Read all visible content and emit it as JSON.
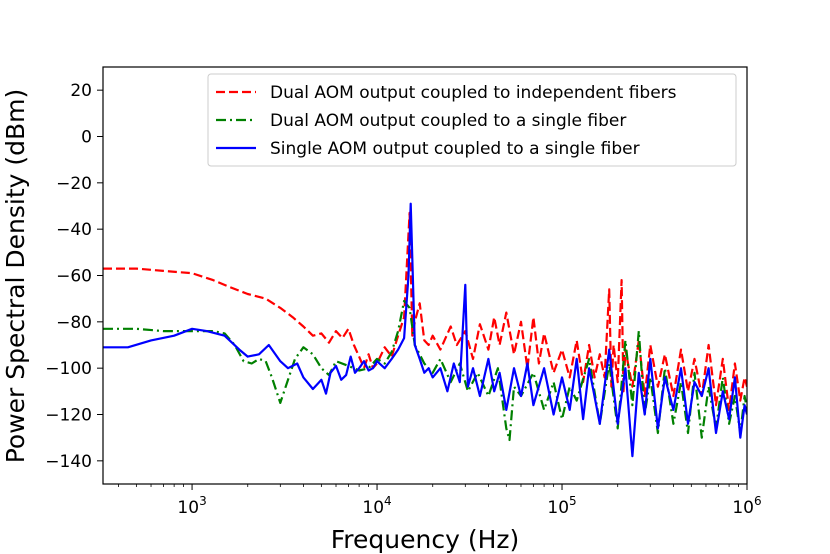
{
  "chart_data": {
    "type": "line",
    "title": "",
    "xlabel": "Frequency (Hz)",
    "ylabel": "Power Spectral Density (dBm)",
    "xscale": "log",
    "xlim": [
      330,
      1000000
    ],
    "ylim": [
      -150,
      30
    ],
    "x_ticks": [
      {
        "value": 1000,
        "base": "10",
        "exp": "3"
      },
      {
        "value": 10000,
        "base": "10",
        "exp": "4"
      },
      {
        "value": 100000,
        "base": "10",
        "exp": "5"
      },
      {
        "value": 1000000,
        "base": "10",
        "exp": "6"
      }
    ],
    "y_ticks": [
      {
        "value": 20,
        "label": "20"
      },
      {
        "value": 0,
        "label": "0"
      },
      {
        "value": -20,
        "label": "−20"
      },
      {
        "value": -40,
        "label": "−40"
      },
      {
        "value": -60,
        "label": "−60"
      },
      {
        "value": -80,
        "label": "−80"
      },
      {
        "value": -100,
        "label": "−100"
      },
      {
        "value": -120,
        "label": "−120"
      },
      {
        "value": -140,
        "label": "−140"
      }
    ],
    "grid": false,
    "legend_position": "top-right",
    "series": [
      {
        "name": "Dual AOM output coupled to independent fibers",
        "color": "#ff0000",
        "style": "dashed",
        "points": [
          [
            330,
            -57
          ],
          [
            500,
            -57
          ],
          [
            700,
            -58
          ],
          [
            1000,
            -59
          ],
          [
            1300,
            -62
          ],
          [
            1600,
            -65
          ],
          [
            2000,
            -68
          ],
          [
            2500,
            -70
          ],
          [
            3000,
            -74
          ],
          [
            3500,
            -78
          ],
          [
            4000,
            -82
          ],
          [
            4500,
            -86
          ],
          [
            5000,
            -85
          ],
          [
            5500,
            -89
          ],
          [
            6000,
            -84
          ],
          [
            6500,
            -87
          ],
          [
            7000,
            -83
          ],
          [
            7500,
            -90
          ],
          [
            8000,
            -95
          ],
          [
            8500,
            -100
          ],
          [
            9000,
            -94
          ],
          [
            9500,
            -100
          ],
          [
            10000,
            -98
          ],
          [
            11000,
            -91
          ],
          [
            12000,
            -95
          ],
          [
            13000,
            -86
          ],
          [
            14000,
            -78
          ],
          [
            15000,
            -33
          ],
          [
            15500,
            -86
          ],
          [
            16000,
            -80
          ],
          [
            17000,
            -72
          ],
          [
            18000,
            -88
          ],
          [
            19000,
            -90
          ],
          [
            20000,
            -86
          ],
          [
            22000,
            -92
          ],
          [
            25000,
            -82
          ],
          [
            27000,
            -90
          ],
          [
            30000,
            -84
          ],
          [
            33000,
            -96
          ],
          [
            36000,
            -81
          ],
          [
            40000,
            -92
          ],
          [
            43000,
            -78
          ],
          [
            46000,
            -90
          ],
          [
            50000,
            -76
          ],
          [
            55000,
            -94
          ],
          [
            60000,
            -80
          ],
          [
            65000,
            -100
          ],
          [
            70000,
            -78
          ],
          [
            75000,
            -98
          ],
          [
            80000,
            -85
          ],
          [
            90000,
            -102
          ],
          [
            100000,
            -92
          ],
          [
            110000,
            -104
          ],
          [
            120000,
            -88
          ],
          [
            130000,
            -106
          ],
          [
            140000,
            -90
          ],
          [
            150000,
            -104
          ],
          [
            160000,
            -94
          ],
          [
            170000,
            -104
          ],
          [
            180000,
            -66
          ],
          [
            185000,
            -108
          ],
          [
            190000,
            -90
          ],
          [
            200000,
            -106
          ],
          [
            210000,
            -62
          ],
          [
            215000,
            -110
          ],
          [
            220000,
            -92
          ],
          [
            240000,
            -108
          ],
          [
            260000,
            -88
          ],
          [
            280000,
            -112
          ],
          [
            300000,
            -90
          ],
          [
            330000,
            -108
          ],
          [
            360000,
            -94
          ],
          [
            400000,
            -112
          ],
          [
            440000,
            -92
          ],
          [
            480000,
            -110
          ],
          [
            520000,
            -96
          ],
          [
            570000,
            -112
          ],
          [
            620000,
            -90
          ],
          [
            680000,
            -116
          ],
          [
            740000,
            -96
          ],
          [
            800000,
            -118
          ],
          [
            860000,
            -98
          ],
          [
            920000,
            -114
          ],
          [
            970000,
            -104
          ],
          [
            1000000,
            -108
          ]
        ]
      },
      {
        "name": "Dual AOM output coupled to a single fiber",
        "color": "#008000",
        "style": "dashdot",
        "points": [
          [
            330,
            -83
          ],
          [
            500,
            -83
          ],
          [
            700,
            -84
          ],
          [
            1000,
            -84
          ],
          [
            1300,
            -84
          ],
          [
            1500,
            -85
          ],
          [
            1700,
            -90
          ],
          [
            1900,
            -97
          ],
          [
            2100,
            -98
          ],
          [
            2300,
            -96
          ],
          [
            2500,
            -97
          ],
          [
            2700,
            -104
          ],
          [
            3000,
            -115
          ],
          [
            3300,
            -105
          ],
          [
            3600,
            -96
          ],
          [
            4000,
            -91
          ],
          [
            4500,
            -94
          ],
          [
            5000,
            -100
          ],
          [
            5500,
            -103
          ],
          [
            6000,
            -97
          ],
          [
            7000,
            -99
          ],
          [
            8000,
            -101
          ],
          [
            9000,
            -100
          ],
          [
            10000,
            -96
          ],
          [
            11000,
            -98
          ],
          [
            12000,
            -93
          ],
          [
            13000,
            -84
          ],
          [
            14000,
            -71
          ],
          [
            15000,
            -74
          ],
          [
            16000,
            -90
          ],
          [
            17000,
            -94
          ],
          [
            18000,
            -98
          ],
          [
            20000,
            -102
          ],
          [
            22000,
            -96
          ],
          [
            25000,
            -106
          ],
          [
            28000,
            -98
          ],
          [
            31000,
            -110
          ],
          [
            35000,
            -102
          ],
          [
            40000,
            -112
          ],
          [
            45000,
            -100
          ],
          [
            50000,
            -126
          ],
          [
            52000,
            -131
          ],
          [
            55000,
            -108
          ],
          [
            60000,
            -112
          ],
          [
            70000,
            -102
          ],
          [
            80000,
            -118
          ],
          [
            90000,
            -106
          ],
          [
            100000,
            -122
          ],
          [
            110000,
            -108
          ],
          [
            120000,
            -114
          ],
          [
            140000,
            -96
          ],
          [
            160000,
            -124
          ],
          [
            180000,
            -98
          ],
          [
            200000,
            -126
          ],
          [
            220000,
            -88
          ],
          [
            240000,
            -116
          ],
          [
            260000,
            -84
          ],
          [
            280000,
            -120
          ],
          [
            300000,
            -104
          ],
          [
            330000,
            -128
          ],
          [
            360000,
            -100
          ],
          [
            400000,
            -124
          ],
          [
            440000,
            -106
          ],
          [
            480000,
            -128
          ],
          [
            520000,
            -102
          ],
          [
            570000,
            -130
          ],
          [
            620000,
            -108
          ],
          [
            680000,
            -126
          ],
          [
            740000,
            -104
          ],
          [
            800000,
            -124
          ],
          [
            860000,
            -112
          ],
          [
            920000,
            -128
          ],
          [
            970000,
            -112
          ],
          [
            1000000,
            -118
          ]
        ]
      },
      {
        "name": "Single AOM output coupled to a single fiber",
        "color": "#0000ff",
        "style": "solid",
        "points": [
          [
            330,
            -91
          ],
          [
            450,
            -91
          ],
          [
            600,
            -88
          ],
          [
            800,
            -86
          ],
          [
            1000,
            -83
          ],
          [
            1200,
            -84
          ],
          [
            1500,
            -86
          ],
          [
            1800,
            -92
          ],
          [
            2000,
            -95
          ],
          [
            2300,
            -94
          ],
          [
            2600,
            -90
          ],
          [
            3000,
            -97
          ],
          [
            3300,
            -100
          ],
          [
            3700,
            -98
          ],
          [
            4000,
            -104
          ],
          [
            4500,
            -109
          ],
          [
            5000,
            -105
          ],
          [
            5300,
            -111
          ],
          [
            5600,
            -102
          ],
          [
            6000,
            -99
          ],
          [
            6400,
            -105
          ],
          [
            6800,
            -103
          ],
          [
            7200,
            -95
          ],
          [
            7600,
            -102
          ],
          [
            8000,
            -100
          ],
          [
            8500,
            -97
          ],
          [
            9000,
            -101
          ],
          [
            9500,
            -100
          ],
          [
            10000,
            -97
          ],
          [
            11000,
            -100
          ],
          [
            12000,
            -96
          ],
          [
            13000,
            -92
          ],
          [
            14000,
            -87
          ],
          [
            14800,
            -60
          ],
          [
            15200,
            -29
          ],
          [
            15600,
            -60
          ],
          [
            16000,
            -90
          ],
          [
            17000,
            -96
          ],
          [
            18000,
            -102
          ],
          [
            19000,
            -100
          ],
          [
            20000,
            -104
          ],
          [
            22000,
            -100
          ],
          [
            24000,
            -110
          ],
          [
            26000,
            -98
          ],
          [
            28000,
            -106
          ],
          [
            30000,
            -64
          ],
          [
            31000,
            -108
          ],
          [
            33000,
            -100
          ],
          [
            36000,
            -112
          ],
          [
            40000,
            -96
          ],
          [
            43000,
            -110
          ],
          [
            46000,
            -102
          ],
          [
            50000,
            -118
          ],
          [
            55000,
            -100
          ],
          [
            60000,
            -112
          ],
          [
            65000,
            -98
          ],
          [
            70000,
            -116
          ],
          [
            80000,
            -100
          ],
          [
            90000,
            -120
          ],
          [
            100000,
            -104
          ],
          [
            110000,
            -118
          ],
          [
            120000,
            -96
          ],
          [
            130000,
            -122
          ],
          [
            140000,
            -100
          ],
          [
            160000,
            -124
          ],
          [
            180000,
            -92
          ],
          [
            200000,
            -124
          ],
          [
            220000,
            -100
          ],
          [
            240000,
            -138
          ],
          [
            260000,
            -102
          ],
          [
            280000,
            -120
          ],
          [
            300000,
            -96
          ],
          [
            330000,
            -126
          ],
          [
            360000,
            -104
          ],
          [
            400000,
            -118
          ],
          [
            440000,
            -100
          ],
          [
            480000,
            -124
          ],
          [
            520000,
            -106
          ],
          [
            570000,
            -112
          ],
          [
            620000,
            -100
          ],
          [
            680000,
            -128
          ],
          [
            740000,
            -110
          ],
          [
            800000,
            -122
          ],
          [
            860000,
            -104
          ],
          [
            920000,
            -130
          ],
          [
            970000,
            -116
          ],
          [
            1000000,
            -120
          ]
        ]
      }
    ]
  }
}
